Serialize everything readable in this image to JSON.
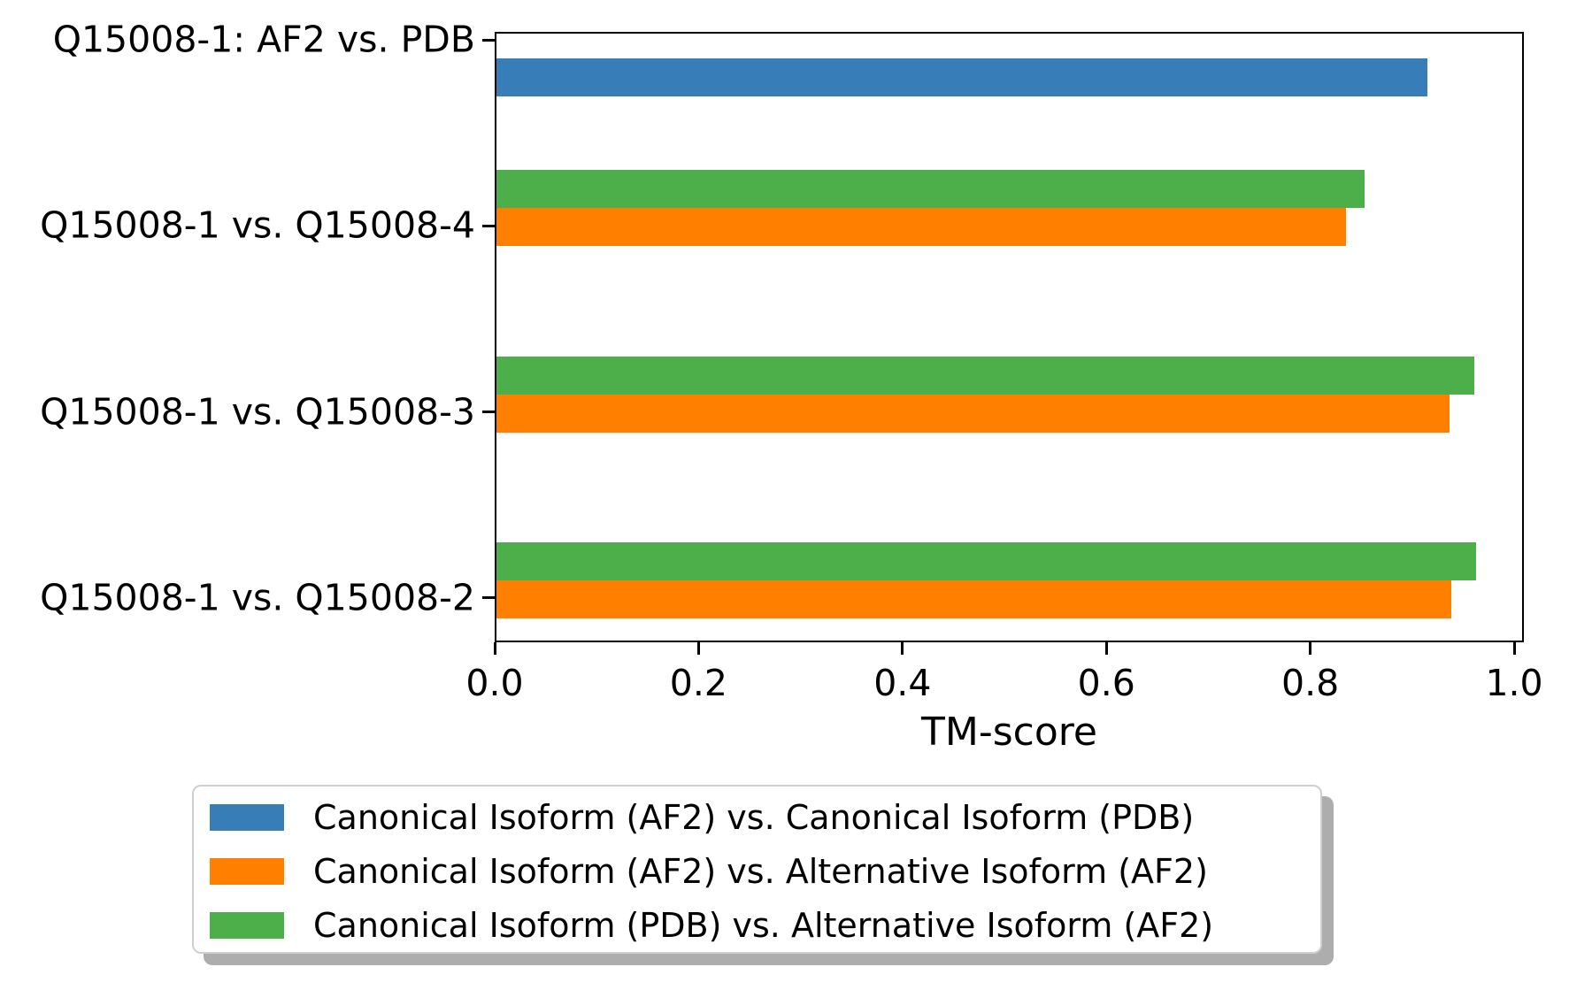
{
  "chart_data": {
    "type": "bar",
    "orientation": "horizontal",
    "title": "",
    "xlabel": "TM-score",
    "ylabel": "",
    "grid": false,
    "legend_position": "bottom",
    "xlim": [
      0.0,
      1.0095
    ],
    "x_ticks": [
      0.0,
      0.2,
      0.4,
      0.6,
      0.8,
      1.0
    ],
    "x_tick_labels": [
      "0.0",
      "0.2",
      "0.4",
      "0.6",
      "0.8",
      "1.0"
    ],
    "categories": [
      "Q15008-1: AF2 vs. PDB",
      "Q15008-1 vs. Q15008-4",
      "Q15008-1 vs. Q15008-3",
      "Q15008-1 vs. Q15008-2"
    ],
    "series": [
      {
        "name": "Canonical Isoform (AF2) vs. Canonical Isoform (PDB)",
        "color": "#377eb8",
        "values": [
          0.915,
          null,
          null,
          null
        ]
      },
      {
        "name": "Canonical Isoform (AF2) vs. Alternative Isoform (AF2)",
        "color": "#ff7f00",
        "values": [
          null,
          0.835,
          0.937,
          0.938
        ]
      },
      {
        "name": "Canonical Isoform (PDB) vs. Alternative Isoform (AF2)",
        "color": "#4daf4a",
        "values": [
          null,
          0.853,
          0.961,
          0.963
        ]
      }
    ]
  }
}
